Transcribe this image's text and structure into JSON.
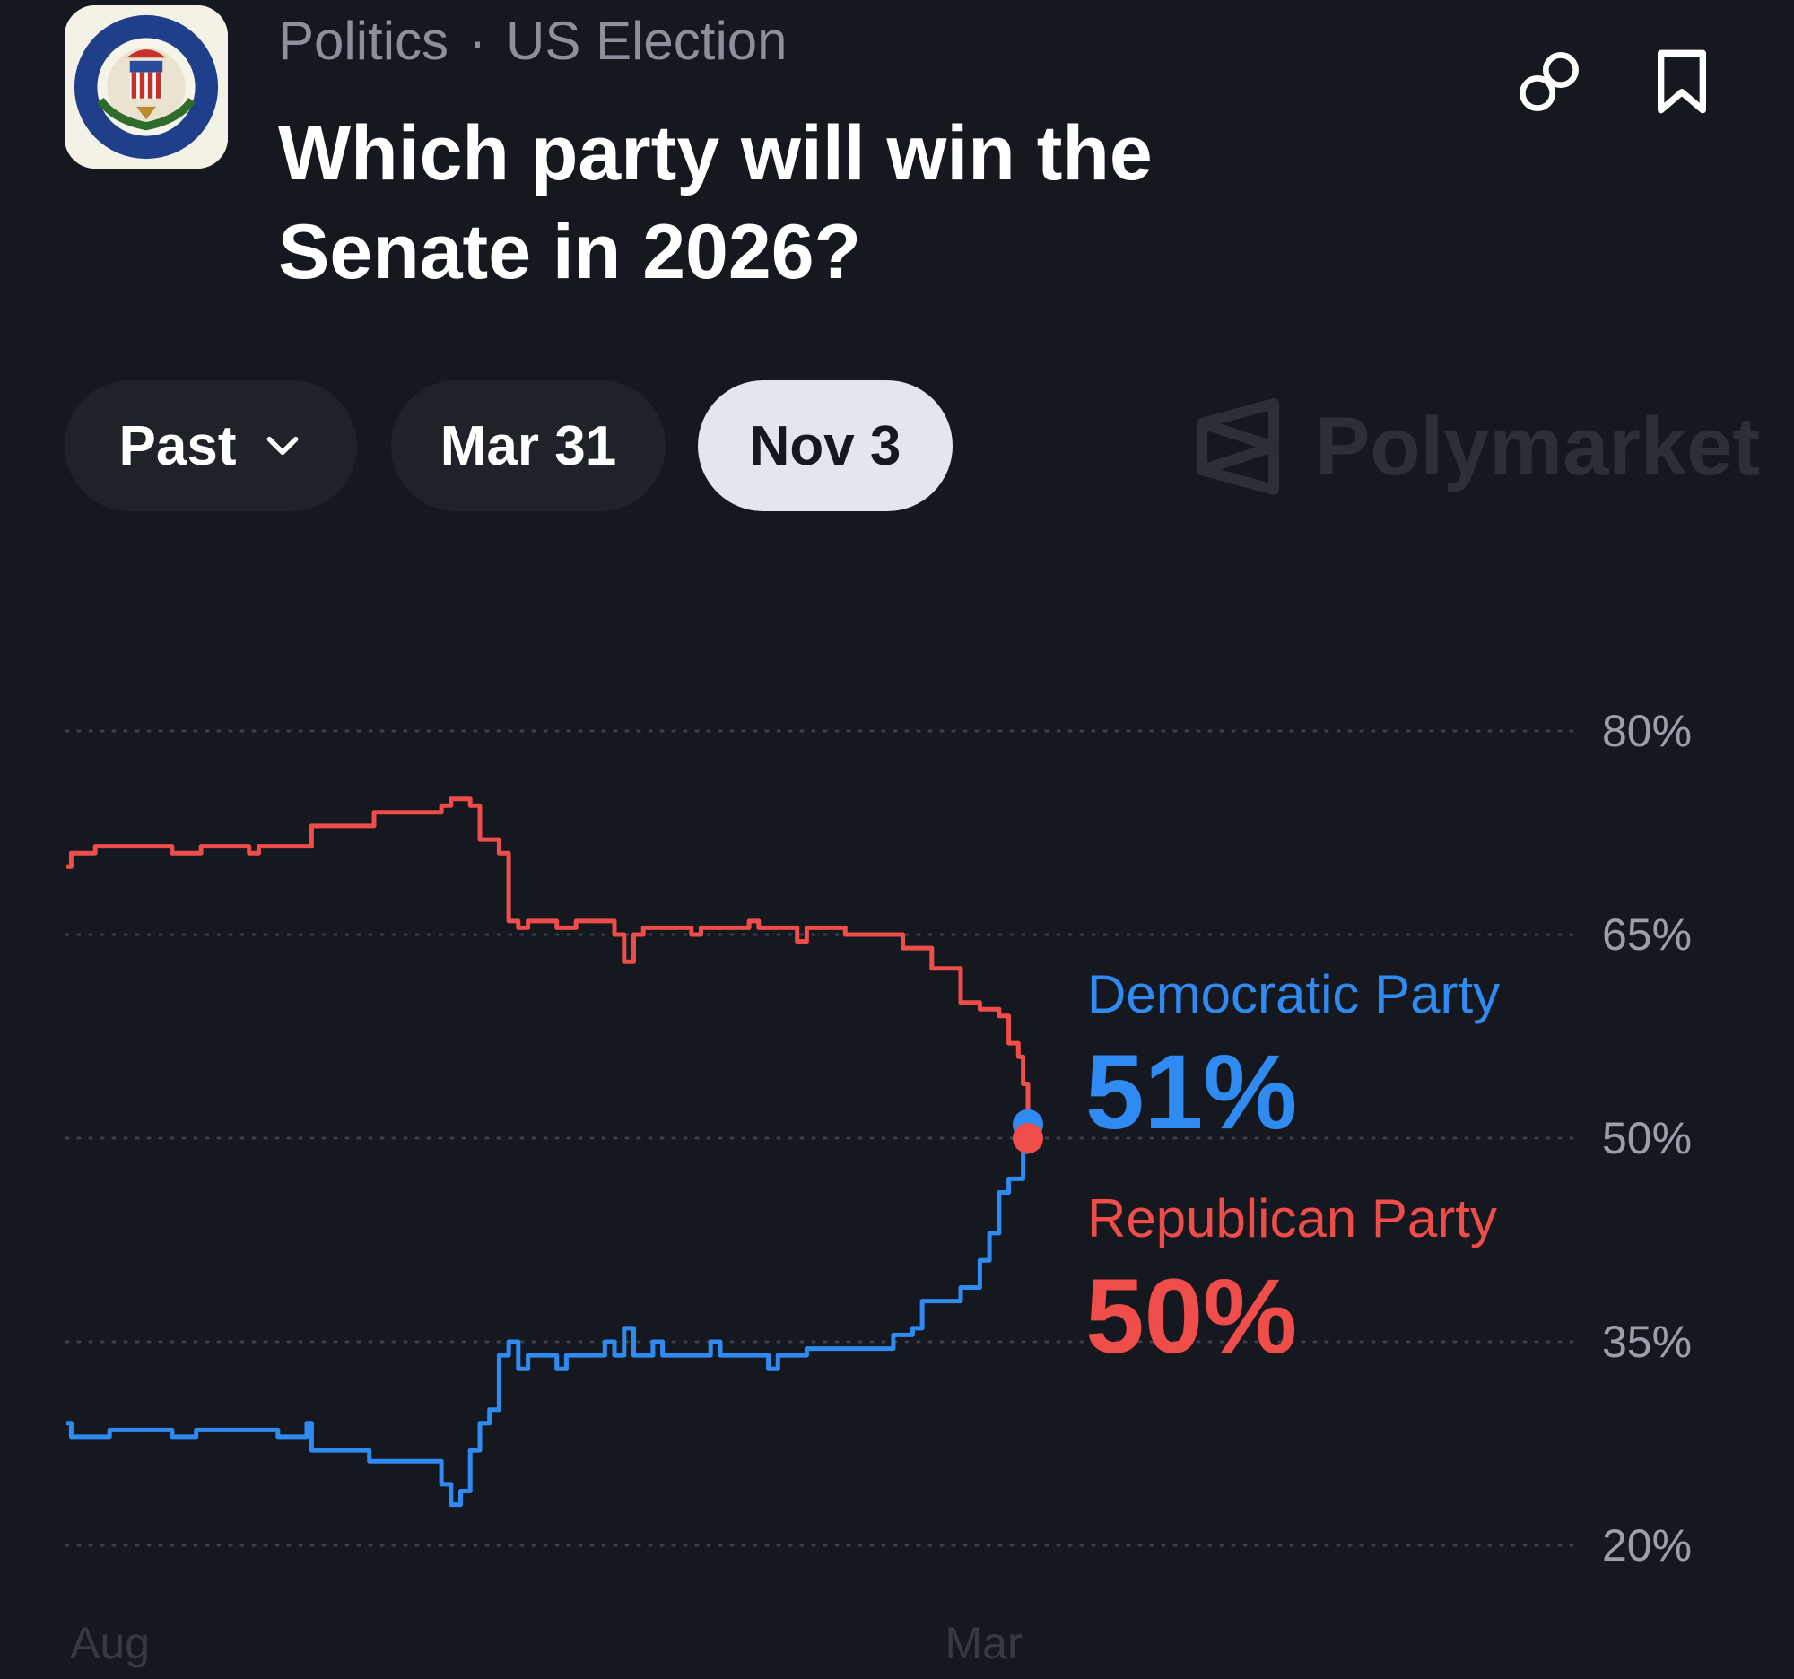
{
  "header": {
    "breadcrumb": [
      "Politics",
      "US Election"
    ],
    "breadcrumb_separator": "·",
    "title_lines": [
      "Which party will win the",
      "Senate in 2026?"
    ],
    "logo_icon": "us-senate-seal-icon",
    "actions": [
      {
        "name": "copy-link-button",
        "icon": "link-icon"
      },
      {
        "name": "bookmark-button",
        "icon": "bookmark-icon"
      }
    ]
  },
  "tabs": [
    {
      "label": "Past",
      "icon": "chevron-down-icon",
      "selected": false
    },
    {
      "label": "Mar 31",
      "selected": false
    },
    {
      "label": "Nov 3",
      "selected": true
    }
  ],
  "watermark": {
    "text": "Polymarket",
    "icon": "polymarket-logo-icon"
  },
  "colors": {
    "democratic": "#2f8bf1",
    "republican": "#ef4d4a",
    "background": "#161820",
    "grid": "#3a3f48"
  },
  "chart_data": {
    "type": "line",
    "ylim": [
      20,
      80
    ],
    "yticks": [
      "80%",
      "65%",
      "50%",
      "35%",
      "20%"
    ],
    "ytick_values": [
      80,
      65,
      50,
      35,
      20
    ],
    "xtick_labels": [
      "Aug",
      "Mar"
    ],
    "grid": true,
    "grid_style": "dotted",
    "x_unit": "time index (0 = start of series, 100 = latest point)",
    "xtick_positions": [
      0,
      91
    ],
    "series": [
      {
        "name": "Democratic Party",
        "label": "51%",
        "color": "#2f8bf1",
        "points": [
          [
            0,
            29
          ],
          [
            0.5,
            28
          ],
          [
            1,
            28
          ],
          [
            4,
            28
          ],
          [
            4.5,
            28.5
          ],
          [
            10,
            28.5
          ],
          [
            11,
            28
          ],
          [
            13,
            28
          ],
          [
            13.5,
            28.5
          ],
          [
            21,
            28.5
          ],
          [
            22,
            28
          ],
          [
            24,
            28
          ],
          [
            25,
            29
          ],
          [
            25.5,
            27
          ],
          [
            31,
            27
          ],
          [
            31.5,
            26.2
          ],
          [
            38,
            26.2
          ],
          [
            39,
            24.5
          ],
          [
            40,
            23
          ],
          [
            41,
            24
          ],
          [
            42,
            27
          ],
          [
            43,
            29
          ],
          [
            44,
            30
          ],
          [
            45,
            34
          ],
          [
            46,
            35
          ],
          [
            47,
            33
          ],
          [
            48,
            34
          ],
          [
            50,
            34
          ],
          [
            51,
            33
          ],
          [
            52,
            34
          ],
          [
            55,
            34
          ],
          [
            56,
            35
          ],
          [
            57,
            34
          ],
          [
            58,
            36
          ],
          [
            59,
            34
          ],
          [
            60,
            34
          ],
          [
            61,
            35
          ],
          [
            62,
            34
          ],
          [
            66,
            34
          ],
          [
            67,
            35
          ],
          [
            68,
            34
          ],
          [
            72,
            34
          ],
          [
            73,
            33
          ],
          [
            74,
            34
          ],
          [
            76,
            34
          ],
          [
            77,
            34.5
          ],
          [
            85,
            34.5
          ],
          [
            86,
            35.5
          ],
          [
            88,
            36
          ],
          [
            89,
            38
          ],
          [
            92,
            38
          ],
          [
            93,
            39
          ],
          [
            95,
            41
          ],
          [
            96,
            43
          ],
          [
            97,
            46
          ],
          [
            98,
            47
          ],
          [
            99.5,
            49
          ],
          [
            100,
            51
          ]
        ]
      },
      {
        "name": "Republican Party",
        "label": "50%",
        "color": "#ef4d4a",
        "points": [
          [
            0,
            70
          ],
          [
            0.5,
            71
          ],
          [
            1,
            71
          ],
          [
            3,
            71.5
          ],
          [
            10,
            71.5
          ],
          [
            11,
            71
          ],
          [
            13,
            71
          ],
          [
            14,
            71.5
          ],
          [
            18,
            71.5
          ],
          [
            19,
            71
          ],
          [
            20,
            71.5
          ],
          [
            25,
            71.5
          ],
          [
            25.5,
            73
          ],
          [
            31,
            73
          ],
          [
            32,
            74
          ],
          [
            38,
            74
          ],
          [
            39,
            74.5
          ],
          [
            40,
            75
          ],
          [
            42,
            74.5
          ],
          [
            43,
            72
          ],
          [
            45,
            71
          ],
          [
            46,
            66
          ],
          [
            47,
            65.5
          ],
          [
            48,
            66
          ],
          [
            50,
            66
          ],
          [
            51,
            65.5
          ],
          [
            53,
            66
          ],
          [
            56,
            66
          ],
          [
            57,
            65
          ],
          [
            58,
            63
          ],
          [
            59,
            65
          ],
          [
            60,
            65.5
          ],
          [
            64,
            65.5
          ],
          [
            65,
            65
          ],
          [
            66,
            65.5
          ],
          [
            70,
            65.5
          ],
          [
            71,
            66
          ],
          [
            72,
            65.5
          ],
          [
            75,
            65.5
          ],
          [
            76,
            64.5
          ],
          [
            77,
            65.5
          ],
          [
            80,
            65.5
          ],
          [
            81,
            65
          ],
          [
            86,
            65
          ],
          [
            87,
            64
          ],
          [
            88,
            64
          ],
          [
            90,
            62.5
          ],
          [
            92,
            62.5
          ],
          [
            93,
            60
          ],
          [
            95,
            59.5
          ],
          [
            97,
            59
          ],
          [
            98,
            57
          ],
          [
            99,
            56
          ],
          [
            99.5,
            54
          ],
          [
            100,
            50
          ]
        ]
      }
    ]
  }
}
